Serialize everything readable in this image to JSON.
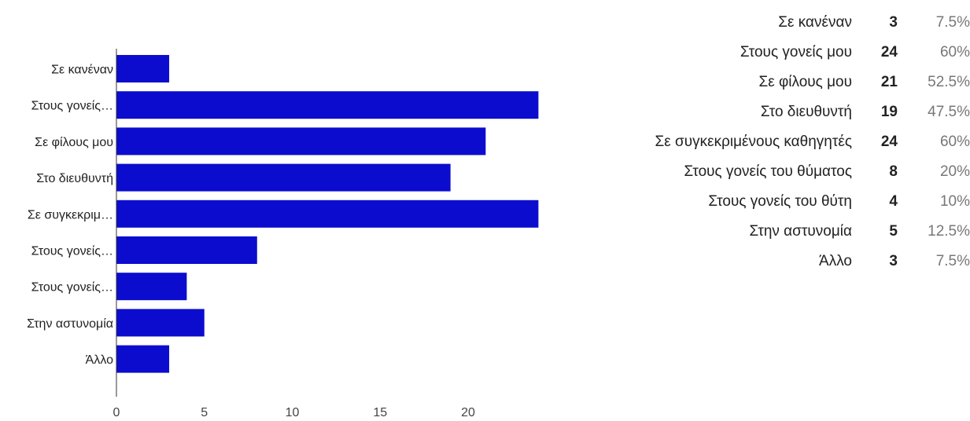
{
  "chart_data": {
    "type": "bar",
    "orientation": "horizontal",
    "categories": [
      "Σε κανέναν",
      "Στους γονείς…",
      "Σε φίλους μου",
      "Στο διευθυντή",
      "Σε συγκεκριμ…",
      "Στους γονείς…",
      "Στους γονείς…",
      "Στην αστυνομία",
      "Άλλο"
    ],
    "values": [
      3,
      24,
      21,
      19,
      24,
      8,
      4,
      5,
      3
    ],
    "xticks": [
      "0",
      "5",
      "10",
      "15",
      "20"
    ],
    "xlim": [
      0,
      25
    ],
    "bar_color": "#0c0cce",
    "grid": false,
    "legend": "none"
  },
  "summary": {
    "rows": [
      {
        "label": "Σε κανέναν",
        "count": "3",
        "percent": "7.5%"
      },
      {
        "label": "Στους γονείς μου",
        "count": "24",
        "percent": "60%"
      },
      {
        "label": "Σε φίλους μου",
        "count": "21",
        "percent": "52.5%"
      },
      {
        "label": "Στο διευθυντή",
        "count": "19",
        "percent": "47.5%"
      },
      {
        "label": "Σε συγκεκριμένους καθηγητές",
        "count": "24",
        "percent": "60%"
      },
      {
        "label": "Στους γονείς του θύματος",
        "count": "8",
        "percent": "20%"
      },
      {
        "label": "Στους γονείς του θύτη",
        "count": "4",
        "percent": "10%"
      },
      {
        "label": "Στην αστυνομία",
        "count": "5",
        "percent": "12.5%"
      },
      {
        "label": "Άλλο",
        "count": "3",
        "percent": "7.5%"
      }
    ]
  }
}
